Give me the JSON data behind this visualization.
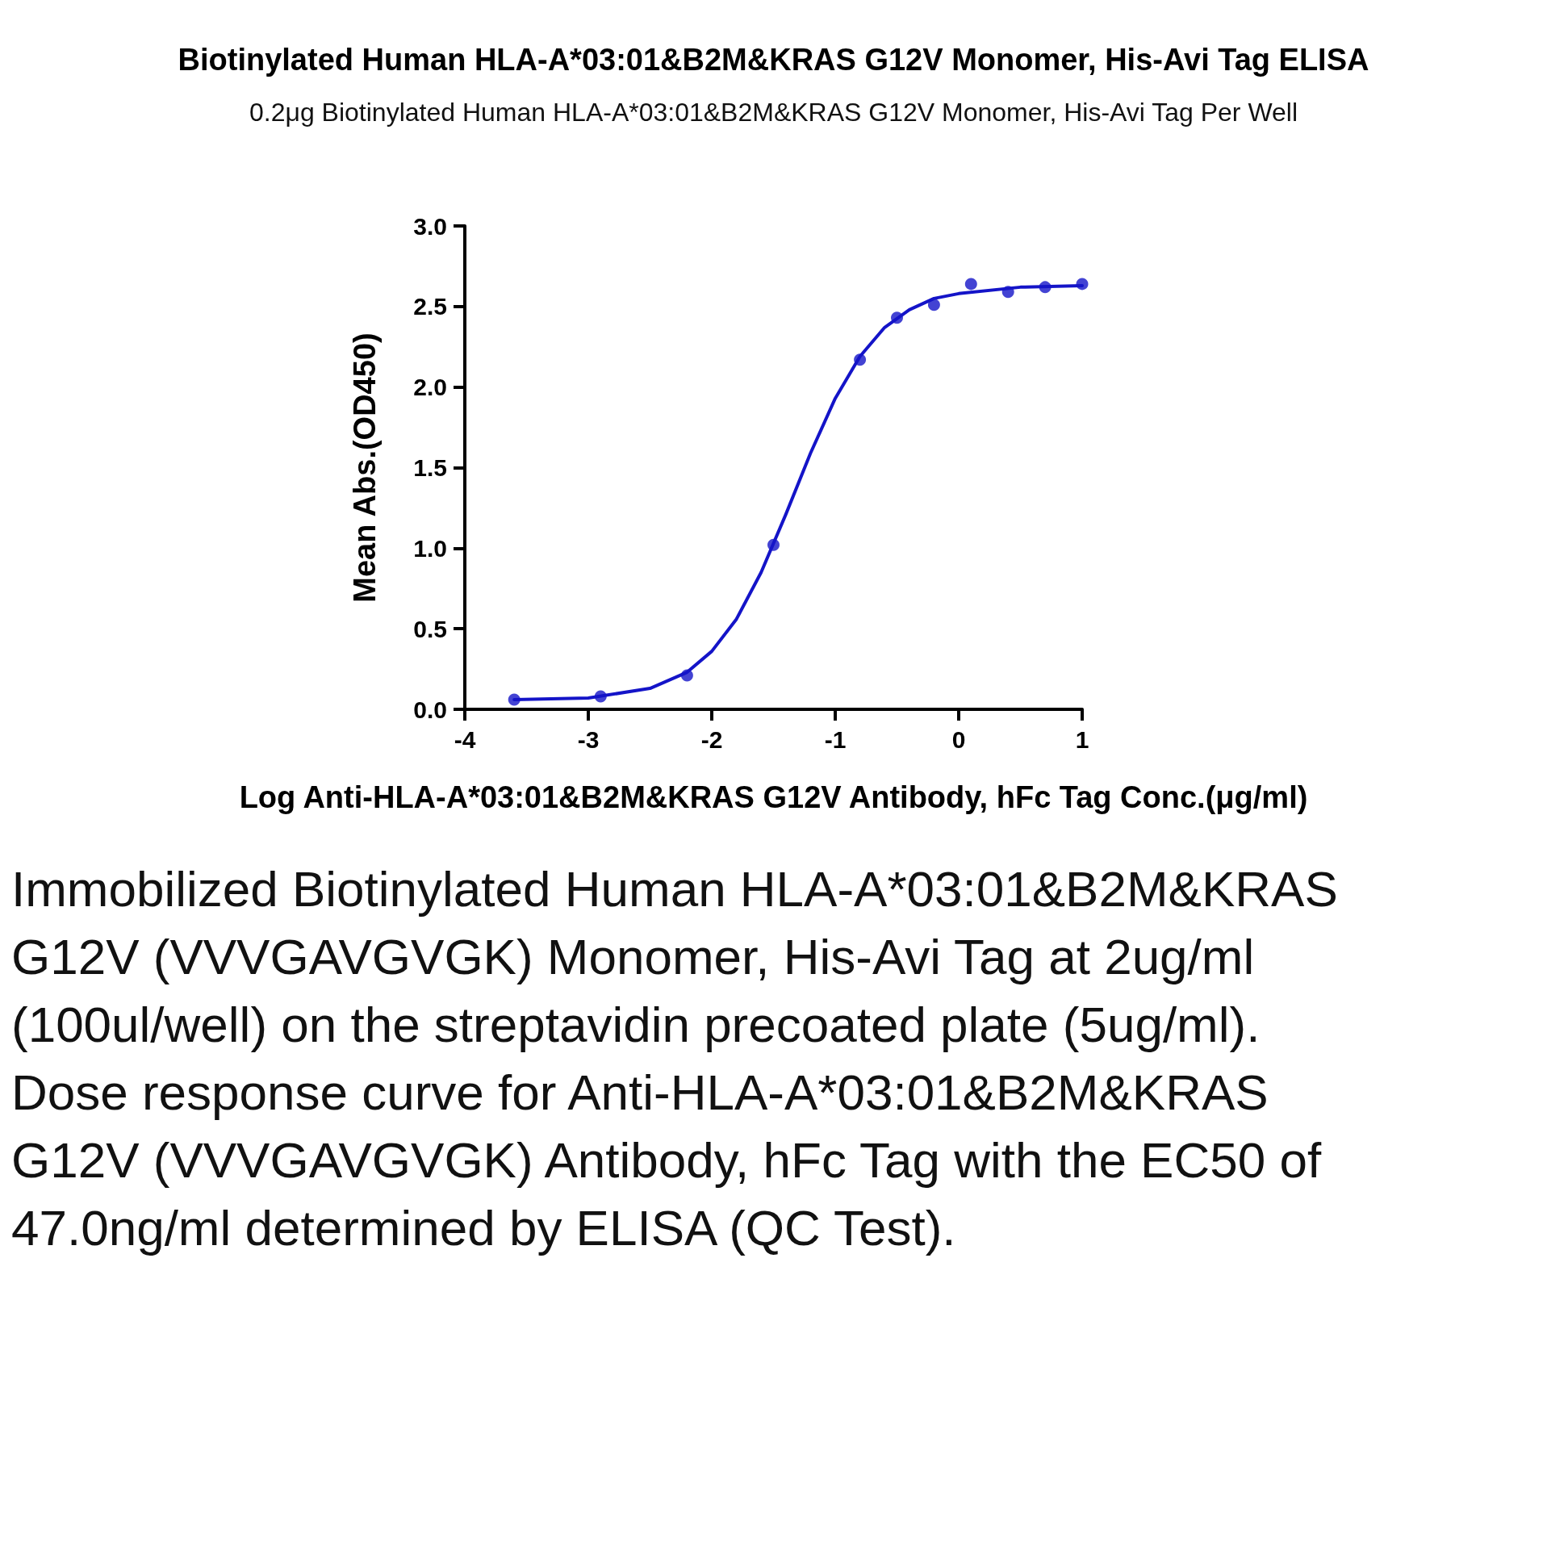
{
  "chart_data": {
    "type": "scatter",
    "title": "Biotinylated Human HLA-A*03:01&B2M&KRAS G12V Monomer, His-Avi Tag ELISA",
    "subtitle": "0.2μg Biotinylated Human HLA-A*03:01&B2M&KRAS G12V Monomer, His-Avi Tag Per Well",
    "xlabel": "Log Anti-HLA-A*03:01&B2M&KRAS G12V Antibody, hFc Tag Conc.(μg/ml)",
    "ylabel": "Mean Abs.(OD450)",
    "annotations": [
      "Immobilized Biotinylated Human HLA-A*03:01&B2M&KRAS G12V (VVVGAVGVGK) Monomer, His-Avi Tag at 2ug/ml (100ul/well) on the streptavidin precoated plate (5ug/ml). Dose response curve for Anti-HLA-A*03:01&B2M&KRAS G12V (VVVGAVGVGK) Antibody, hFc Tag with the EC50 of 47.0ng/ml determined by ELISA (QC Test)."
    ],
    "xlim": [
      -4,
      1
    ],
    "xticks": [
      -4,
      -3,
      -2,
      -1,
      0,
      1
    ],
    "ylim": [
      0,
      3
    ],
    "yticks": [
      {
        "value": 0,
        "label": "0.0"
      },
      {
        "value": 0.5,
        "label": "0.5"
      },
      {
        "value": 1,
        "label": "1.0"
      },
      {
        "value": 1.5,
        "label": "1.5"
      },
      {
        "value": 2,
        "label": "2.0"
      },
      {
        "value": 2.5,
        "label": "2.5"
      },
      {
        "value": 3,
        "label": "3.0"
      }
    ],
    "grid": false,
    "marker": "circle",
    "series": [
      {
        "type": "scatter",
        "color": "#1414c8",
        "x": [
          -3.6,
          -2.9,
          -2.2,
          -1.5,
          -0.8,
          -0.5,
          -0.2,
          0.1,
          0.4,
          0.7,
          1.0
        ],
        "values": [
          0.06,
          0.08,
          0.21,
          1.02,
          2.17,
          2.43,
          2.51,
          2.64,
          2.59,
          2.62,
          2.64
        ]
      },
      {
        "type": "line",
        "color": "#1414c8",
        "marker": "none",
        "line_style": "solid",
        "x": [
          -3.6,
          -3,
          -2.5,
          -2.2,
          -2,
          -1.8,
          -1.6,
          -1.4,
          -1.2,
          -1,
          -0.8,
          -0.6,
          -0.4,
          -0.2,
          0,
          0.5,
          1
        ],
        "values": [
          0.06,
          0.07,
          0.13,
          0.23,
          0.36,
          0.56,
          0.85,
          1.21,
          1.59,
          1.93,
          2.19,
          2.37,
          2.48,
          2.55,
          2.58,
          2.62,
          2.63
        ]
      }
    ]
  }
}
